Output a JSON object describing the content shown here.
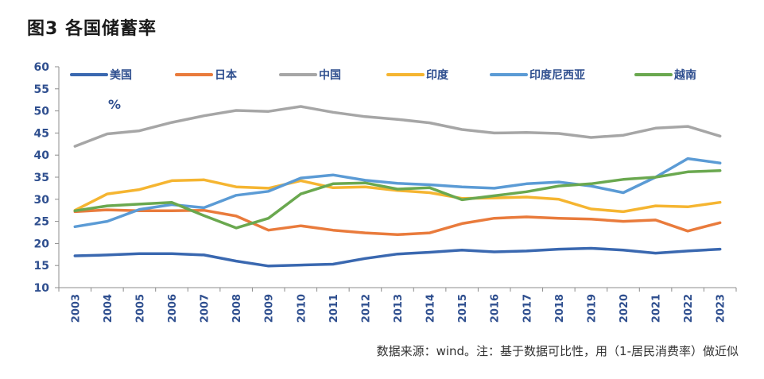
{
  "figure": {
    "title": "图3  各国储蓄率",
    "source": "数据来源：wind。注：基于数据可比性，用（1-居民消费率）做近似"
  },
  "chart_data": {
    "type": "line",
    "title": "图3  各国储蓄率",
    "ylabel": "%",
    "xlabel": "",
    "ylim": [
      10,
      60
    ],
    "yticks": [
      10,
      15,
      20,
      25,
      30,
      35,
      40,
      45,
      50,
      55,
      60
    ],
    "x": [
      "2003",
      "2004",
      "2005",
      "2006",
      "2007",
      "2008",
      "2009",
      "2010",
      "2011",
      "2012",
      "2013",
      "2014",
      "2015",
      "2016",
      "2017",
      "2018",
      "2019",
      "2020",
      "2021",
      "2022",
      "2023"
    ],
    "grid": false,
    "legend": "top",
    "series": [
      {
        "name": "美国",
        "color": "#3a68b0",
        "values": [
          17.2,
          17.4,
          17.7,
          17.7,
          17.4,
          16.0,
          14.9,
          15.1,
          15.3,
          16.6,
          17.6,
          18.0,
          18.5,
          18.1,
          18.3,
          18.7,
          18.9,
          18.5,
          17.8,
          18.3,
          18.7
        ]
      },
      {
        "name": "日本",
        "color": "#e97b3c",
        "values": [
          27.2,
          27.6,
          27.4,
          27.4,
          27.5,
          26.2,
          23.0,
          24.0,
          23.0,
          22.4,
          22.0,
          22.4,
          24.5,
          25.7,
          26.0,
          25.7,
          25.5,
          25.0,
          25.3,
          22.8,
          24.7
        ]
      },
      {
        "name": "中国",
        "color": "#a6a6a6",
        "values": [
          42.0,
          44.8,
          45.5,
          47.4,
          48.9,
          50.1,
          49.9,
          51.0,
          49.7,
          48.7,
          48.1,
          47.3,
          45.8,
          45.0,
          45.1,
          44.9,
          44.0,
          44.5,
          46.1,
          46.5,
          44.3
        ]
      },
      {
        "name": "印度",
        "color": "#f5b531",
        "values": [
          27.5,
          31.2,
          32.2,
          34.2,
          34.4,
          32.8,
          32.5,
          34.2,
          32.6,
          32.8,
          32.0,
          31.5,
          30.2,
          30.3,
          30.5,
          30.0,
          27.8,
          27.2,
          28.5,
          28.3,
          29.3
        ]
      },
      {
        "name": "印度尼西亚",
        "color": "#5b9bd5",
        "values": [
          23.8,
          25.0,
          27.7,
          28.8,
          28.1,
          30.9,
          31.8,
          34.8,
          35.5,
          34.3,
          33.6,
          33.3,
          32.8,
          32.5,
          33.5,
          33.9,
          33.0,
          31.5,
          35.0,
          39.2,
          38.2
        ]
      },
      {
        "name": "越南",
        "color": "#6aa84f",
        "values": [
          27.4,
          28.5,
          28.9,
          29.3,
          26.3,
          23.5,
          25.7,
          31.2,
          33.5,
          33.7,
          32.3,
          32.6,
          29.9,
          30.8,
          31.7,
          33.0,
          33.5,
          34.5,
          35.0,
          36.2,
          36.5
        ]
      }
    ]
  }
}
